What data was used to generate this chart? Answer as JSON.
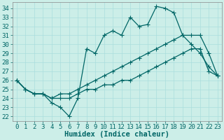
{
  "xlabel": "Humidex (Indice chaleur)",
  "background_color": "#cceee8",
  "line_color": "#006666",
  "grid_color": "#aadddd",
  "xlim": [
    -0.5,
    23.5
  ],
  "ylim": [
    21.5,
    34.7
  ],
  "yticks": [
    22,
    23,
    24,
    25,
    26,
    27,
    28,
    29,
    30,
    31,
    32,
    33,
    34
  ],
  "xticks": [
    0,
    1,
    2,
    3,
    4,
    5,
    6,
    7,
    8,
    9,
    10,
    11,
    12,
    13,
    14,
    15,
    16,
    17,
    18,
    19,
    20,
    21,
    22,
    23
  ],
  "line1_y": [
    26,
    25,
    24.5,
    24.5,
    23.5,
    23,
    22,
    24,
    29.5,
    29,
    31,
    31.5,
    31,
    33,
    32,
    32.2,
    34.2,
    34,
    33.5,
    31,
    30,
    29,
    27.5,
    26.5
  ],
  "line2_y": [
    26,
    25,
    24.5,
    24.5,
    24,
    24.5,
    24.5,
    25,
    25.5,
    26,
    26.5,
    27,
    27.5,
    28,
    28.5,
    29,
    29.5,
    30,
    30.5,
    31,
    31,
    31,
    29,
    26.5
  ],
  "line3_y": [
    26,
    25,
    24.5,
    24.5,
    24,
    24,
    24,
    24.5,
    25,
    25,
    25.5,
    25.5,
    26,
    26,
    26.5,
    27,
    27.5,
    28,
    28.5,
    29,
    29.5,
    29.5,
    27,
    26.5
  ],
  "marker_size": 2.5,
  "line_width": 0.9,
  "font_size": 6.5,
  "xlabel_fontsize": 7.5
}
